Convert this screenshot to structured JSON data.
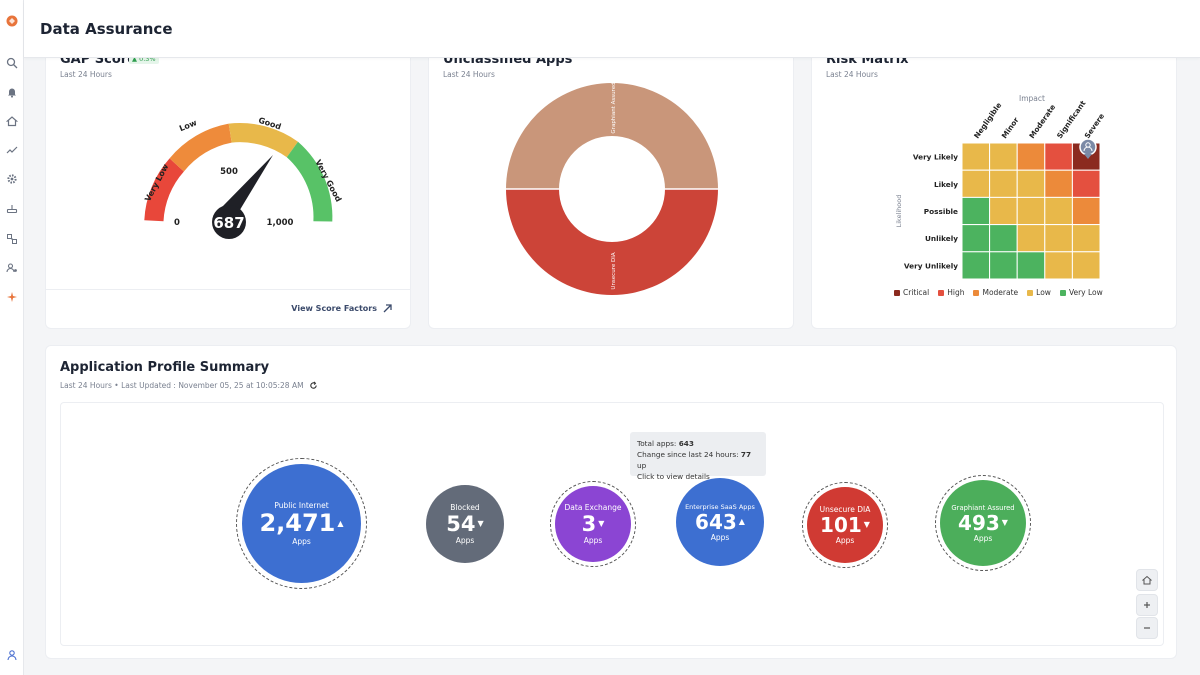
{
  "header": {
    "title": "Data Assurance"
  },
  "sidebar": {
    "icons": [
      "logo-icon",
      "search-icon",
      "bell-icon",
      "home-icon",
      "chart-icon",
      "gear-icon",
      "network-icon",
      "apps-icon",
      "users-settings-icon",
      "sparkle-icon",
      "user-icon"
    ]
  },
  "gap_score": {
    "title": "GAP Score",
    "badge": "▲ 0.3%",
    "subtitle": "Last 24 Hours",
    "value": "687",
    "bands": [
      "Very Low",
      "Low",
      "Good",
      "Very Good"
    ],
    "ticks": {
      "min": "0",
      "mid": "500",
      "max": "1,000"
    },
    "view_factors": "View Score Factors"
  },
  "unclassified": {
    "title": "Unclassified Apps",
    "subtitle": "Last 24 Hours",
    "segments": [
      "Graphiant Assured",
      "Unsecure DIA"
    ],
    "colors": {
      "top": "#c9967a",
      "bottom": "#cc4438"
    }
  },
  "risk_matrix": {
    "title": "Risk Matrix",
    "subtitle": "Last 24 Hours",
    "impact_label": "Impact",
    "likelihood_label": "Likelihood",
    "impact": [
      "Negligible",
      "Minor",
      "Moderate",
      "Significant",
      "Severe"
    ],
    "likelihood": [
      "Very Likely",
      "Likely",
      "Possible",
      "Unlikely",
      "Very Unlikely"
    ],
    "legend": [
      {
        "label": "Critical",
        "color": "#8b2a1f"
      },
      {
        "label": "High",
        "color": "#e4503f"
      },
      {
        "label": "Moderate",
        "color": "#ec8a3a"
      },
      {
        "label": "Low",
        "color": "#e8b84a"
      },
      {
        "label": "Very Low",
        "color": "#4cb35f"
      }
    ]
  },
  "app_profile": {
    "title": "Application Profile Summary",
    "subtitle": "Last 24 Hours • Last Updated : November 05, 25 at 10:05:28 AM",
    "tooltip": {
      "total_label": "Total apps:",
      "total_value": "643",
      "change_label": "Change since last 24 hours:",
      "change_value": "77",
      "change_dir": "up",
      "hint": "Click to view details"
    },
    "bubbles": [
      {
        "label": "Public Internet",
        "value": "2,471",
        "arrow": "▲",
        "unit": "Apps",
        "color": "#3d6fd1"
      },
      {
        "label": "Blocked",
        "value": "54",
        "arrow": "▼",
        "unit": "Apps",
        "color": "#636b79"
      },
      {
        "label": "Data Exchange",
        "value": "3",
        "arrow": "▼",
        "unit": "Apps",
        "color": "#8b45d3"
      },
      {
        "label": "Enterprise SaaS Apps",
        "value": "643",
        "arrow": "▲",
        "unit": "Apps",
        "color": "#3d6fd1"
      },
      {
        "label": "Unsecure DIA",
        "value": "101",
        "arrow": "▼",
        "unit": "Apps",
        "color": "#d03a33"
      },
      {
        "label": "Graphiant Assured",
        "value": "493",
        "arrow": "▼",
        "unit": "Apps",
        "color": "#4cae5b"
      }
    ]
  }
}
